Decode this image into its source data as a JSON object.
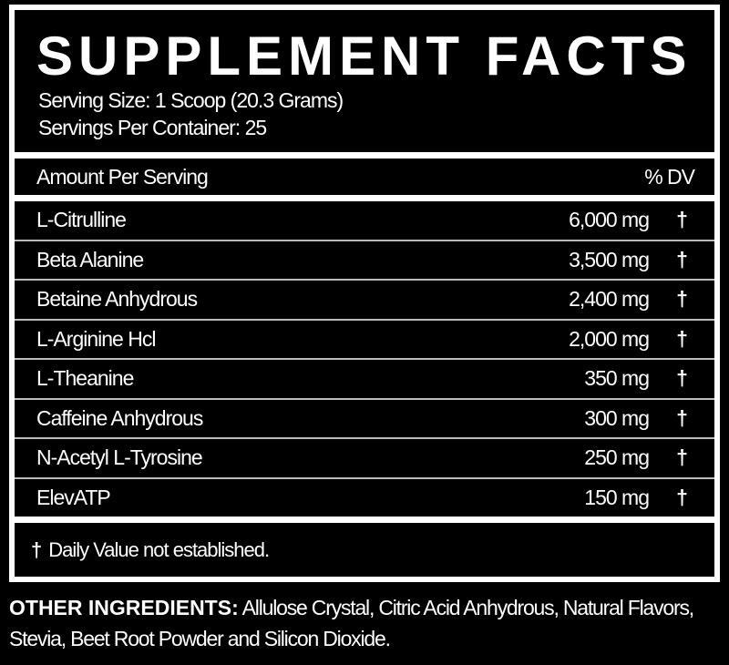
{
  "title": "SUPPLEMENT FACTS",
  "serving_size": "Serving Size: 1 Scoop (20.3 Grams)",
  "servings_per_container": "Servings Per Container: 25",
  "header": {
    "amount_label": "Amount Per Serving",
    "dv_label": "% DV"
  },
  "ingredients": [
    {
      "name": "L-Citrulline",
      "amount": "6,000 mg",
      "dv": "†"
    },
    {
      "name": "Beta Alanine",
      "amount": "3,500 mg",
      "dv": "†"
    },
    {
      "name": "Betaine Anhydrous",
      "amount": "2,400 mg",
      "dv": "†"
    },
    {
      "name": "L-Arginine Hcl",
      "amount": "2,000 mg",
      "dv": "†"
    },
    {
      "name": "L-Theanine",
      "amount": "350 mg",
      "dv": "†"
    },
    {
      "name": "Caffeine Anhydrous",
      "amount": "300 mg",
      "dv": "†"
    },
    {
      "name": "N-Acetyl L-Tyrosine",
      "amount": "250 mg",
      "dv": "†"
    },
    {
      "name": "ElevATP",
      "amount": "150 mg",
      "dv": "†"
    }
  ],
  "footnote": {
    "symbol": "†",
    "text": "Daily Value not established."
  },
  "other_ingredients": {
    "label": "OTHER INGREDIENTS:",
    "text": " Allulose Crystal, Citric Acid Anhydrous, Natural Flavors, Stevia, Beet Root Powder and Silicon Dioxide."
  }
}
